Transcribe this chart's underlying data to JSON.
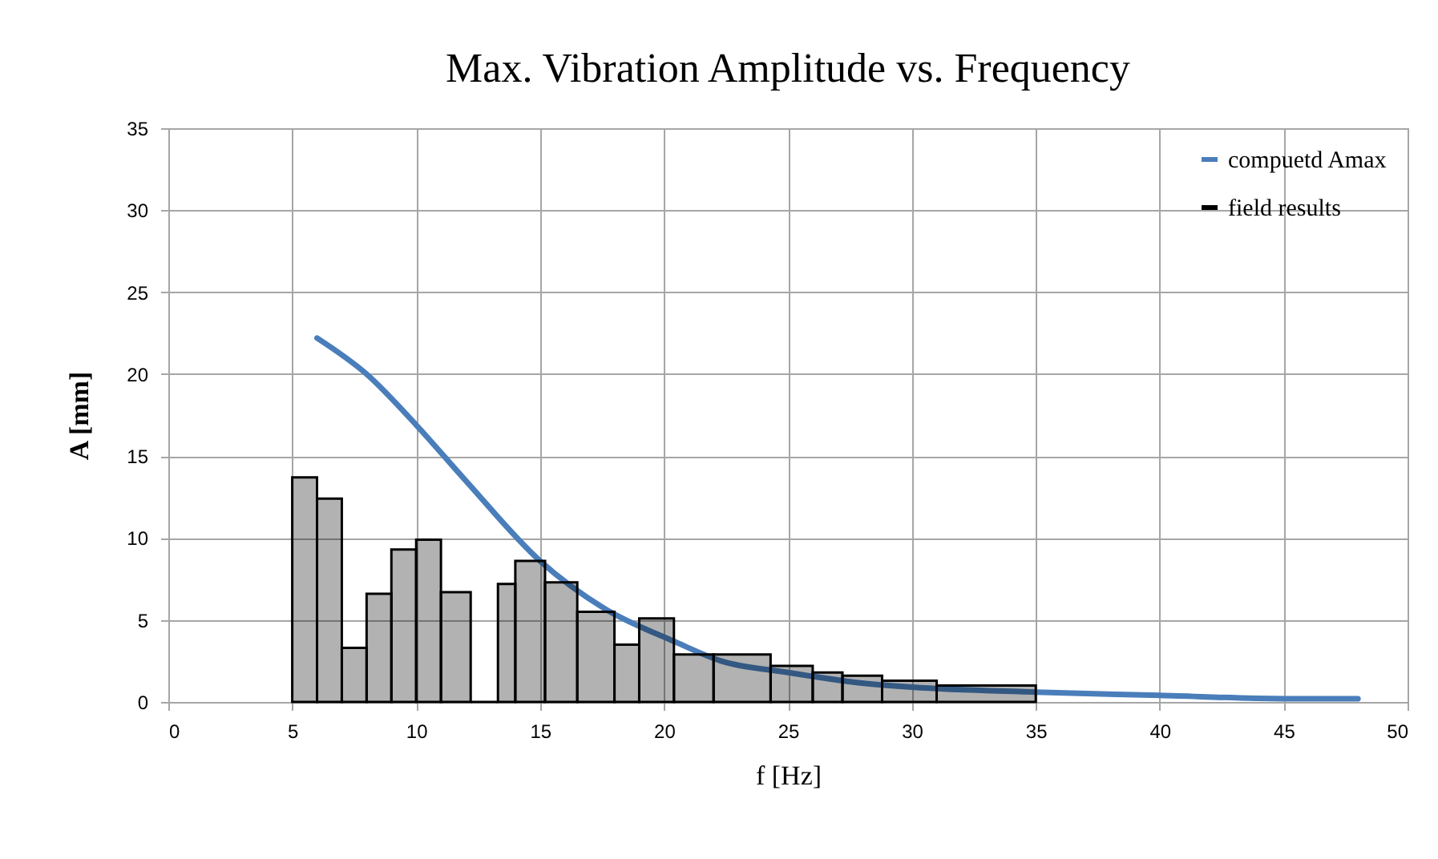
{
  "chart_data": {
    "type": "line",
    "title": "Max. Vibration Amplitude vs. Frequency",
    "xlabel": "f [Hz]",
    "ylabel": "A [mm]",
    "xlim": [
      0,
      50
    ],
    "xticks": [
      0,
      5,
      10,
      15,
      20,
      25,
      30,
      35,
      40,
      45,
      50
    ],
    "ylim": [
      0,
      35
    ],
    "yticks": [
      0,
      5,
      10,
      15,
      20,
      25,
      30,
      35
    ],
    "grid": true,
    "legend": "top right",
    "series": [
      {
        "name": "compuetd Amax",
        "color": "#4a7ebb",
        "x": [
          6,
          8,
          10,
          12,
          15,
          17.6,
          20.4,
          22.3,
          25,
          27.7,
          30,
          35,
          40,
          45,
          48
        ],
        "values": [
          22.2,
          20.0,
          16.9,
          13.5,
          8.6,
          5.7,
          3.7,
          2.5,
          1.8,
          1.2,
          0.9,
          0.6,
          0.4,
          0.2,
          0.2
        ]
      },
      {
        "name": "field results",
        "type": "histogram",
        "color": "#000000",
        "bins": [
          5,
          6,
          7,
          8,
          9,
          10,
          11,
          12.2,
          13.3,
          14,
          15.2,
          16.5,
          18,
          19,
          20.4,
          22,
          24.3,
          26,
          27.2,
          28.8,
          31,
          35
        ],
        "values": [
          13.7,
          12.4,
          3.3,
          6.6,
          9.3,
          9.9,
          6.7,
          0,
          7.2,
          8.6,
          7.3,
          5.5,
          3.5,
          5.1,
          2.9,
          2.9,
          2.2,
          1.8,
          1.6,
          1.3,
          1.0
        ]
      }
    ]
  }
}
